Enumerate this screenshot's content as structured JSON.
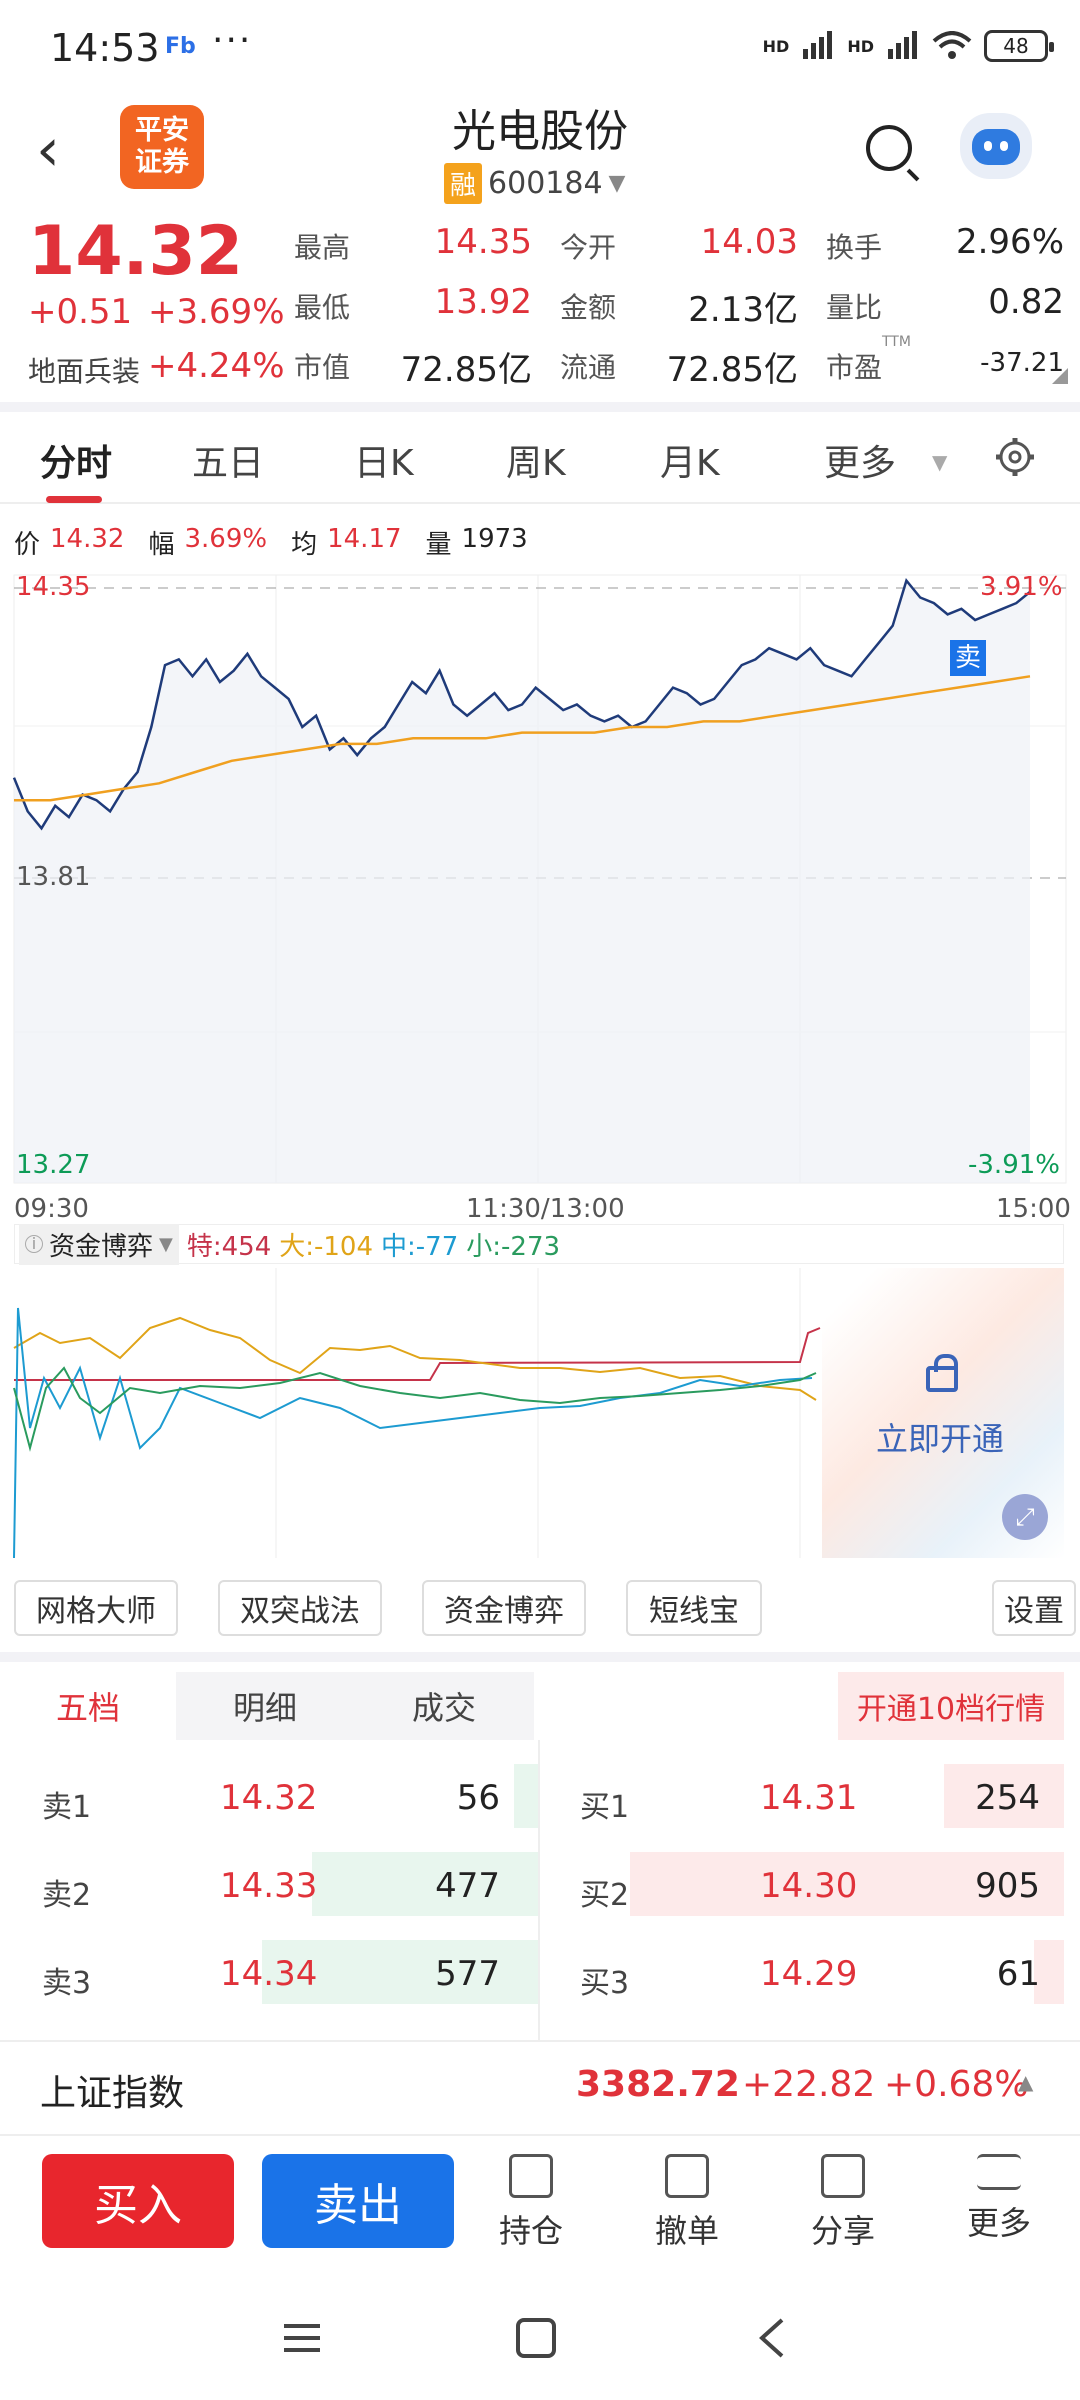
{
  "status": {
    "time": "14:53",
    "fb": "Fb",
    "dots": "···",
    "signal1": "HD",
    "signal2": "HD",
    "battery": "48"
  },
  "header": {
    "title": "光电股份",
    "rong": "融",
    "code": "600184",
    "logo_line1": "平安",
    "logo_line2": "证券"
  },
  "quote": {
    "price": "14.32",
    "change": "+0.51",
    "change_pct": "+3.69%",
    "sector_label": "地面兵装",
    "sector_value": "+4.24%",
    "grid": [
      {
        "label": "最高",
        "value": "14.35",
        "color": "red"
      },
      {
        "label": "今开",
        "value": "14.03",
        "color": "red"
      },
      {
        "label": "换手",
        "value": "2.96%",
        "color": "dark"
      },
      {
        "label": "最低",
        "value": "13.92",
        "color": "red"
      },
      {
        "label": "金额",
        "value": "2.13亿",
        "color": "dark"
      },
      {
        "label": "量比",
        "value": "0.82",
        "color": "dark"
      },
      {
        "label": "市值",
        "value": "72.85亿",
        "color": "dark"
      },
      {
        "label": "流通",
        "value": "72.85亿",
        "color": "dark"
      },
      {
        "label": "市盈",
        "value": "-37.21",
        "color": "dark",
        "sup": "TTM"
      }
    ]
  },
  "tabs": [
    "分时",
    "五日",
    "日K",
    "周K",
    "月K",
    "更多"
  ],
  "info_row": {
    "price_label": "价",
    "price": "14.32",
    "amp_label": "幅",
    "amp": "3.69%",
    "avg_label": "均",
    "avg": "14.17",
    "vol_label": "量",
    "vol": "1973"
  },
  "chart_data": {
    "type": "line",
    "title": "",
    "y_top": "14.35",
    "y_mid": "13.81",
    "y_bottom": "13.27",
    "pct_top": "3.91%",
    "pct_bottom": "-3.91%",
    "x_labels": [
      "09:30",
      "11:30/13:00",
      "15:00"
    ],
    "ylim": [
      13.27,
      14.35
    ],
    "sell_marker": "卖",
    "series": [
      {
        "values": [
          13.99,
          13.93,
          13.9,
          13.94,
          13.92,
          13.96,
          13.95,
          13.93,
          13.97,
          14.0,
          14.08,
          14.19,
          14.2,
          14.17,
          14.2,
          14.16,
          14.18,
          14.21,
          14.17,
          14.15,
          14.13,
          14.08,
          14.1,
          14.04,
          14.06,
          14.03,
          14.06,
          14.08,
          14.12,
          14.16,
          14.14,
          14.18,
          14.12,
          14.1,
          14.12,
          14.14,
          14.11,
          14.12,
          14.15,
          14.13,
          14.11,
          14.12,
          14.1,
          14.09,
          14.1,
          14.08,
          14.09,
          14.12,
          14.15,
          14.14,
          14.12,
          14.13,
          14.16,
          14.19,
          14.2,
          14.22,
          14.21,
          14.2,
          14.22,
          14.19,
          14.18,
          14.17,
          14.2,
          14.23,
          14.26,
          14.34,
          14.31,
          14.3,
          14.28,
          14.29,
          14.27,
          14.28,
          14.29,
          14.3,
          14.32
        ]
      },
      {
        "values": [
          13.95,
          13.95,
          13.96,
          13.97,
          13.98,
          14.0,
          14.02,
          14.03,
          14.04,
          14.05,
          14.05,
          14.06,
          14.06,
          14.06,
          14.07,
          14.07,
          14.07,
          14.08,
          14.08,
          14.09,
          14.09,
          14.1,
          14.11,
          14.12,
          14.13,
          14.14,
          14.15,
          14.16,
          14.17
        ]
      }
    ]
  },
  "indicator": {
    "selector": "资金博弈",
    "te": "特:454",
    "da": "大:-104",
    "zhong": "中:-77",
    "xiao": "小:-273",
    "unlock": "立即开通"
  },
  "tools": [
    "网格大师",
    "双突战法",
    "资金博弈",
    "短线宝",
    "设置"
  ],
  "orderbook": {
    "tabs": [
      "五档",
      "明细",
      "成交"
    ],
    "upgrade": "开通10档行情",
    "sells": [
      {
        "label": "卖1",
        "price": "14.32",
        "vol": "56",
        "bar": 0.1
      },
      {
        "label": "卖2",
        "price": "14.33",
        "vol": "477",
        "bar": 0.6
      },
      {
        "label": "卖3",
        "price": "14.34",
        "vol": "577",
        "bar": 0.73
      }
    ],
    "buys": [
      {
        "label": "买1",
        "price": "14.31",
        "vol": "254",
        "bar": 0.3
      },
      {
        "label": "买2",
        "price": "14.30",
        "vol": "905",
        "bar": 1.0
      },
      {
        "label": "买3",
        "price": "14.29",
        "vol": "61",
        "bar": 0.07
      }
    ]
  },
  "index": {
    "name": "上证指数",
    "value": "3382.72",
    "change": "+22.82",
    "pct": "+0.68%"
  },
  "bottom": {
    "buy": "买入",
    "sell": "卖出",
    "items": [
      "持仓",
      "撤单",
      "分享",
      "更多"
    ]
  }
}
